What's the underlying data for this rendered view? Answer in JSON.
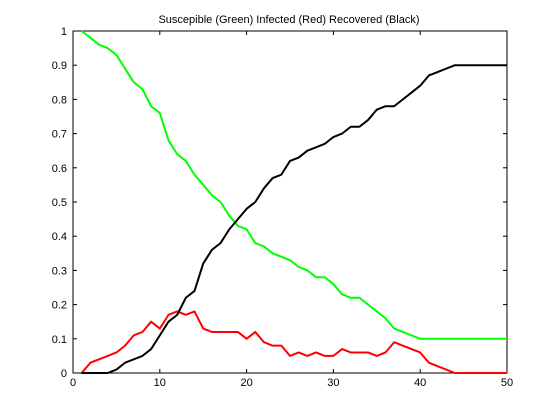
{
  "chart_data": {
    "type": "line",
    "title": "Suscepible (Green) Infected (Red) Recovered (Black)",
    "xlabel": "",
    "ylabel": "",
    "xlim": [
      0,
      50
    ],
    "ylim": [
      0,
      1
    ],
    "xticks": [
      "0",
      "10",
      "20",
      "30",
      "40",
      "50"
    ],
    "yticks": [
      "0",
      "0.1",
      "0.2",
      "0.3",
      "0.4",
      "0.5",
      "0.6",
      "0.7",
      "0.8",
      "0.9",
      "1"
    ],
    "grid": false,
    "legend": "none",
    "x": [
      1,
      2,
      3,
      4,
      5,
      6,
      7,
      8,
      9,
      10,
      11,
      12,
      13,
      14,
      15,
      16,
      17,
      18,
      19,
      20,
      21,
      22,
      23,
      24,
      25,
      26,
      27,
      28,
      29,
      30,
      31,
      32,
      33,
      34,
      35,
      36,
      37,
      38,
      39,
      40,
      41,
      42,
      43,
      44,
      45,
      46,
      47,
      48,
      49,
      50
    ],
    "series": [
      {
        "color": "#00ff00",
        "values": [
          1.0,
          0.98,
          0.96,
          0.95,
          0.93,
          0.89,
          0.85,
          0.83,
          0.78,
          0.76,
          0.68,
          0.64,
          0.62,
          0.58,
          0.55,
          0.52,
          0.5,
          0.46,
          0.43,
          0.42,
          0.38,
          0.37,
          0.35,
          0.34,
          0.33,
          0.31,
          0.3,
          0.28,
          0.28,
          0.26,
          0.23,
          0.22,
          0.22,
          0.2,
          0.18,
          0.16,
          0.13,
          0.12,
          0.11,
          0.1,
          0.1,
          0.1,
          0.1,
          0.1,
          0.1,
          0.1,
          0.1,
          0.1,
          0.1,
          0.1
        ]
      },
      {
        "color": "#ff0000",
        "values": [
          0.0,
          0.03,
          0.04,
          0.05,
          0.06,
          0.08,
          0.11,
          0.12,
          0.15,
          0.13,
          0.17,
          0.18,
          0.17,
          0.18,
          0.13,
          0.12,
          0.12,
          0.12,
          0.12,
          0.1,
          0.12,
          0.09,
          0.08,
          0.08,
          0.05,
          0.06,
          0.05,
          0.06,
          0.05,
          0.05,
          0.07,
          0.06,
          0.06,
          0.06,
          0.05,
          0.06,
          0.09,
          0.08,
          0.07,
          0.06,
          0.03,
          0.02,
          0.01,
          0.0,
          0.0,
          0.0,
          0.0,
          0.0,
          0.0,
          0.0
        ]
      },
      {
        "color": "#000000",
        "values": [
          0.0,
          0.0,
          0.0,
          0.0,
          0.01,
          0.03,
          0.04,
          0.05,
          0.07,
          0.11,
          0.15,
          0.17,
          0.22,
          0.24,
          0.32,
          0.36,
          0.38,
          0.42,
          0.45,
          0.48,
          0.5,
          0.54,
          0.57,
          0.58,
          0.62,
          0.63,
          0.65,
          0.66,
          0.67,
          0.69,
          0.7,
          0.72,
          0.72,
          0.74,
          0.77,
          0.78,
          0.78,
          0.8,
          0.82,
          0.84,
          0.87,
          0.88,
          0.89,
          0.9,
          0.9,
          0.9,
          0.9,
          0.9,
          0.9,
          0.9
        ]
      }
    ]
  }
}
